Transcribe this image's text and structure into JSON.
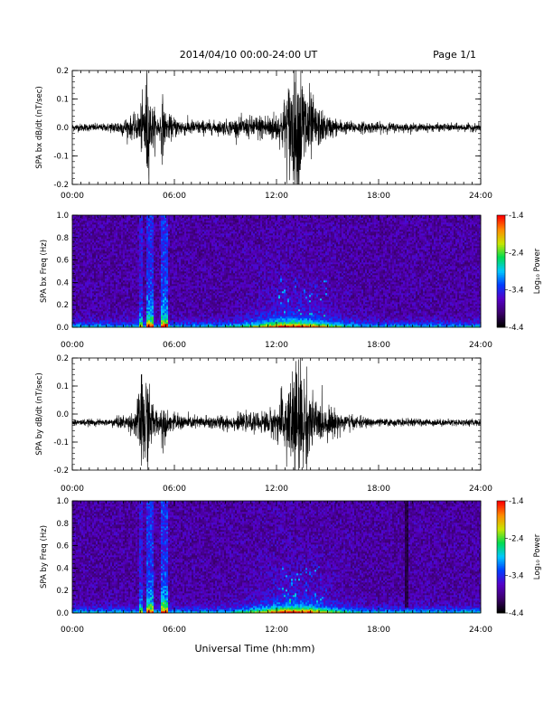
{
  "header": {
    "title": "2014/04/10  00:00-24:00 UT",
    "page": "Page 1/1"
  },
  "footer": {
    "xlabel": "Universal Time (hh:mm)"
  },
  "chart_data": [
    {
      "type": "line",
      "ylabel": "SPA bx dB/dt (nT/sec)",
      "xlim": [
        0,
        24
      ],
      "ylim": [
        -0.2,
        0.2
      ],
      "x_ticks": [
        "00:00",
        "06:00",
        "12:00",
        "18:00",
        "24:00"
      ],
      "y_ticks": [
        "-0.2",
        "-0.1",
        "0.0",
        "0.1",
        "0.2"
      ],
      "baseline": 0.0,
      "envelope": [
        [
          0,
          0.012
        ],
        [
          2,
          0.012
        ],
        [
          3.8,
          0.04
        ],
        [
          4.2,
          0.1
        ],
        [
          4.4,
          0.2
        ],
        [
          4.6,
          0.08
        ],
        [
          5.1,
          0.03
        ],
        [
          5.3,
          0.1
        ],
        [
          5.5,
          0.04
        ],
        [
          6.5,
          0.025
        ],
        [
          8.5,
          0.02
        ],
        [
          10,
          0.03
        ],
        [
          11,
          0.04
        ],
        [
          12.2,
          0.05
        ],
        [
          12.6,
          0.12
        ],
        [
          13,
          0.2
        ],
        [
          13.4,
          0.2
        ],
        [
          13.8,
          0.14
        ],
        [
          14.3,
          0.07
        ],
        [
          15,
          0.035
        ],
        [
          16,
          0.02
        ],
        [
          20,
          0.012
        ],
        [
          24,
          0.012
        ]
      ]
    },
    {
      "type": "heatmap",
      "ylabel": "SPA bx Freq (Hz)",
      "xlim": [
        0,
        24
      ],
      "ylim": [
        0,
        1
      ],
      "x_ticks": [
        "00:00",
        "06:00",
        "12:00",
        "18:00",
        "24:00"
      ],
      "y_ticks": [
        "0.0",
        "0.2",
        "0.4",
        "0.6",
        "0.8",
        "1.0"
      ],
      "colorbar": {
        "label": "Log₁₀ Power",
        "min": -4.4,
        "max": -1.4,
        "ticks": [
          "-1.4",
          "-2.4",
          "-3.4",
          "-4.4"
        ]
      }
    },
    {
      "type": "line",
      "ylabel": "SPA by dB/dt (nT/sec)",
      "xlim": [
        0,
        24
      ],
      "ylim": [
        -0.2,
        0.2
      ],
      "x_ticks": [
        "00:00",
        "06:00",
        "12:00",
        "18:00",
        "24:00"
      ],
      "y_ticks": [
        "-0.2",
        "-0.1",
        "0.0",
        "0.1",
        "0.2"
      ],
      "baseline": -0.03,
      "envelope": [
        [
          0,
          0.01
        ],
        [
          2,
          0.01
        ],
        [
          3.6,
          0.03
        ],
        [
          4,
          0.12
        ],
        [
          4.3,
          0.2
        ],
        [
          4.6,
          0.08
        ],
        [
          5.1,
          0.03
        ],
        [
          5.3,
          0.08
        ],
        [
          5.6,
          0.03
        ],
        [
          7,
          0.02
        ],
        [
          10,
          0.025
        ],
        [
          11,
          0.03
        ],
        [
          12,
          0.05
        ],
        [
          12.6,
          0.12
        ],
        [
          13,
          0.2
        ],
        [
          13.5,
          0.19
        ],
        [
          14,
          0.1
        ],
        [
          14.5,
          0.06
        ],
        [
          15.5,
          0.04
        ],
        [
          16.5,
          0.02
        ],
        [
          18,
          0.012
        ],
        [
          24,
          0.01
        ]
      ]
    },
    {
      "type": "heatmap",
      "ylabel": "SPA by Freq (Hz)",
      "xlim": [
        0,
        24
      ],
      "ylim": [
        0,
        1
      ],
      "x_ticks": [
        "00:00",
        "06:00",
        "12:00",
        "18:00",
        "24:00"
      ],
      "y_ticks": [
        "0.0",
        "0.2",
        "0.4",
        "0.6",
        "0.8",
        "1.0"
      ],
      "colorbar": {
        "label": "Log₁₀ Power",
        "min": -4.4,
        "max": -1.4,
        "ticks": [
          "-1.4",
          "-2.4",
          "-3.4",
          "-4.4"
        ]
      }
    }
  ]
}
